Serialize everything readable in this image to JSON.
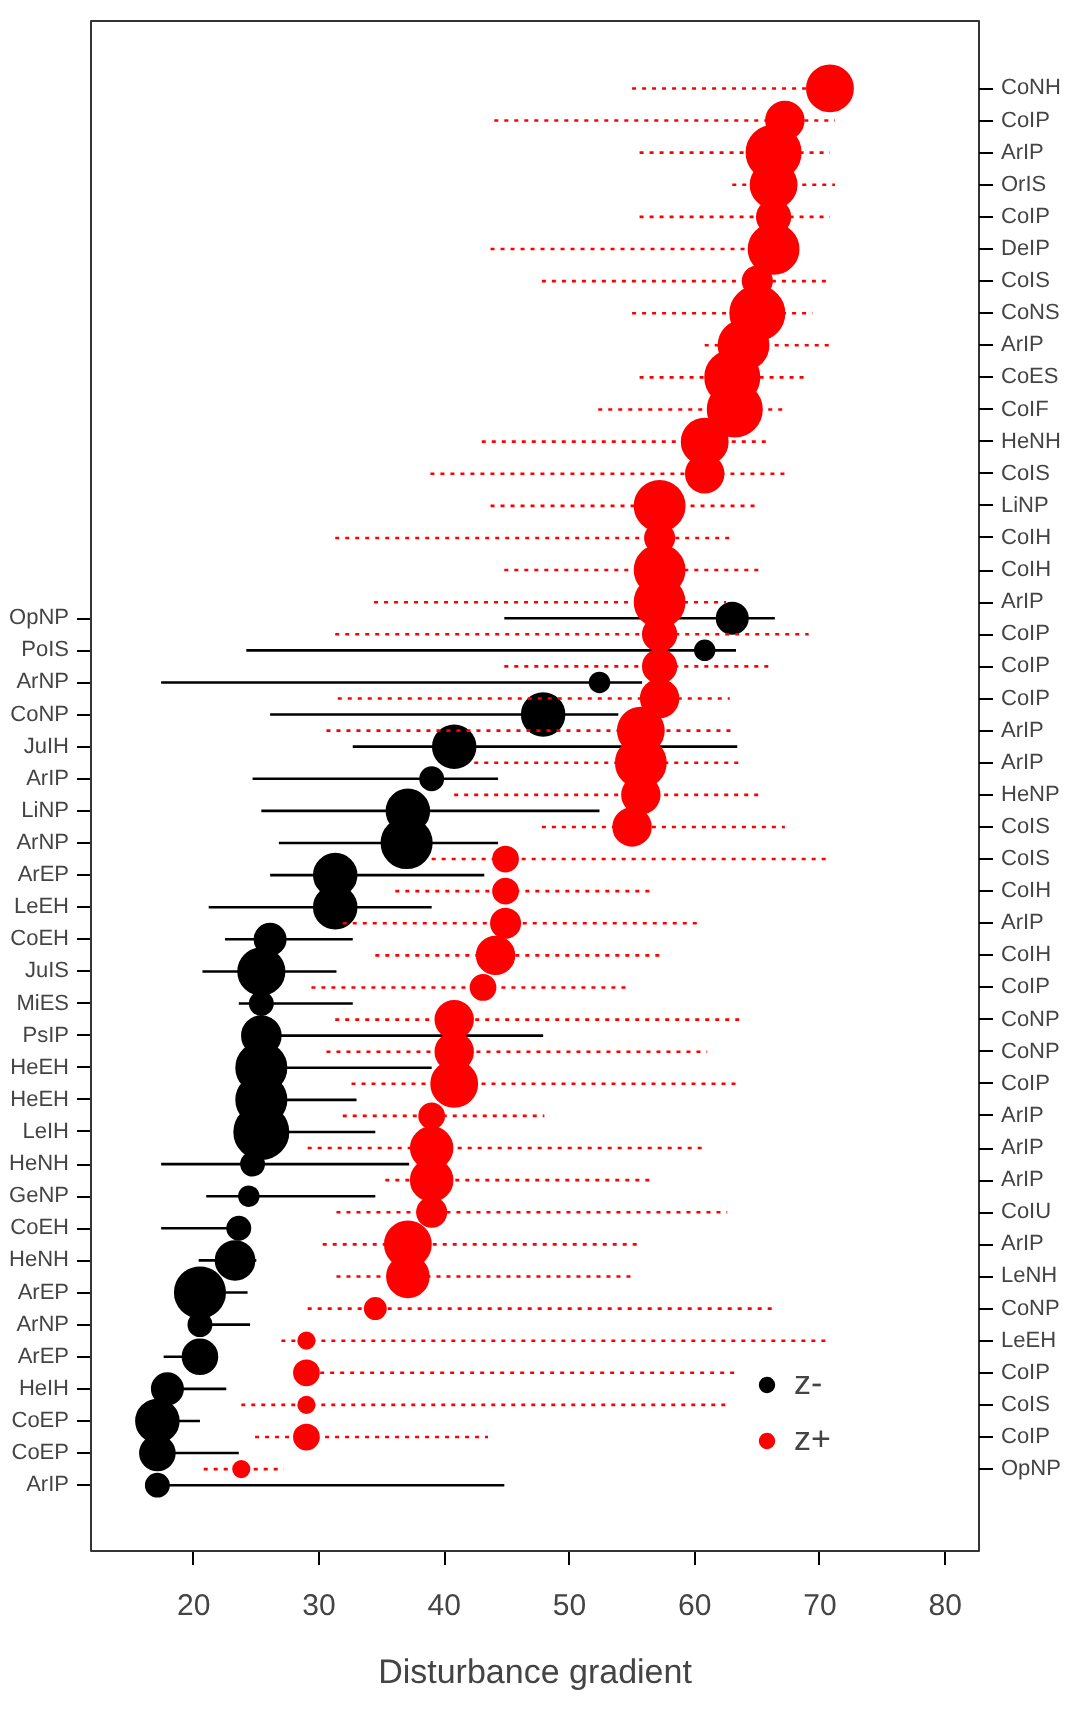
{
  "chart_data": [
    {
      "type": "scatter",
      "orientation": "horizontal",
      "xlabel": "Disturbance gradient",
      "xlim": [
        11.8,
        82.7
      ],
      "xticks": [
        20,
        30,
        40,
        50,
        60,
        70,
        80
      ],
      "grid": false,
      "legend": "bottom right",
      "marker": "circle",
      "categories": [
        "OpNP",
        "PoIS",
        "ArNP",
        "CoNP",
        "JuIH",
        "ArIP",
        "LiNP",
        "ArNP",
        "ArEP",
        "LeEH",
        "CoEH",
        "JuIS",
        "MiES",
        "PsIP",
        "HeEH",
        "HeEH",
        "LeIH",
        "HeNH",
        "GeNP",
        "CoEH",
        "HeNH",
        "ArEP",
        "ArNP",
        "ArEP",
        "HeIH",
        "CoEP",
        "CoEP",
        "ArIP"
      ],
      "series": [
        {
          "name": "z-",
          "color": "#000000",
          "line_style": "solid",
          "values": [
            63.0,
            60.8,
            52.4,
            47.9,
            40.8,
            39.0,
            37.1,
            37.0,
            31.3,
            31.3,
            26.1,
            25.4,
            25.4,
            25.4,
            25.4,
            25.4,
            25.4,
            24.7,
            24.4,
            23.6,
            23.3,
            20.5,
            20.5,
            20.5,
            17.9,
            17.1,
            17.1,
            17.1
          ],
          "sizes": [
            0.33,
            0.13,
            0.13,
            0.62,
            0.62,
            0.18,
            0.62,
            0.86,
            0.62,
            0.62,
            0.33,
            0.73,
            0.18,
            0.51,
            0.86,
            0.86,
            1.0,
            0.18,
            0.13,
            0.18,
            0.51,
            0.86,
            0.18,
            0.41,
            0.33,
            0.62,
            0.41,
            0.18
          ],
          "errors": [
            [
              44.8,
              66.4
            ],
            [
              24.2,
              63.3
            ],
            [
              17.4,
              55.8
            ],
            [
              26.1,
              53.9
            ],
            [
              32.7,
              63.4
            ],
            [
              24.7,
              44.3
            ],
            [
              25.4,
              52.4
            ],
            [
              26.8,
              44.3
            ],
            [
              26.1,
              43.2
            ],
            [
              21.2,
              39.0
            ],
            [
              22.5,
              32.7
            ],
            [
              20.7,
              31.4
            ],
            [
              23.6,
              32.7
            ],
            [
              25.4,
              47.9
            ],
            [
              25.4,
              39.0
            ],
            [
              25.4,
              33.0
            ],
            [
              25.4,
              34.5
            ],
            [
              17.4,
              37.2
            ],
            [
              21.0,
              34.5
            ],
            [
              17.4,
              24.0
            ],
            [
              20.4,
              25.0
            ],
            [
              20.5,
              24.3
            ],
            [
              20.0,
              24.5
            ],
            [
              17.6,
              20.5
            ],
            [
              17.0,
              22.6
            ],
            [
              17.1,
              20.5
            ],
            [
              17.1,
              23.6
            ],
            [
              17.0,
              44.8
            ]
          ]
        }
      ]
    },
    {
      "type": "scatter",
      "orientation": "horizontal",
      "xlim": [
        11.8,
        82.7
      ],
      "xticks": [
        20,
        30,
        40,
        50,
        60,
        70,
        80
      ],
      "grid": false,
      "legend": "bottom right",
      "marker": "circle",
      "tick_labels": "y",
      "categories": [
        "CoNH",
        "CoIP",
        "ArIP",
        "OrIS",
        "CoIP",
        "DeIP",
        "CoIS",
        "CoNS",
        "ArIP",
        "CoES",
        "CoIF",
        "HeNH",
        "CoIS",
        "LiNP",
        "CoIH",
        "CoIH",
        "ArIP",
        "CoIP",
        "CoIP",
        "CoIP",
        "ArIP",
        "ArIP",
        "HeNP",
        "CoIS",
        "CoIS",
        "CoIH",
        "ArIP",
        "CoIH",
        "CoIP",
        "CoNP",
        "CoNP",
        "CoIP",
        "ArIP",
        "ArIP",
        "ArIP",
        "CoIU",
        "ArIP",
        "LeNH",
        "CoNP",
        "LeEH",
        "CoIP",
        "CoIS",
        "CoIP",
        "OpNP"
      ],
      "series": [
        {
          "name": "z+",
          "color": "#ff0000",
          "line_style": "dotted",
          "axis": "y2",
          "values": [
            70.8,
            67.2,
            66.3,
            66.3,
            66.3,
            66.3,
            65.0,
            65.0,
            63.9,
            63.0,
            63.2,
            60.8,
            60.8,
            57.2,
            57.2,
            57.2,
            57.2,
            57.2,
            57.2,
            57.2,
            55.7,
            55.7,
            55.7,
            55.0,
            44.9,
            44.9,
            44.9,
            44.1,
            43.1,
            40.8,
            40.8,
            40.8,
            39.0,
            39.0,
            39.0,
            39.0,
            37.1,
            37.1,
            34.5,
            29.0,
            29.0,
            29.0,
            29.0,
            23.8
          ],
          "sizes": [
            0.72,
            0.48,
            1.0,
            0.72,
            0.38,
            0.85,
            0.29,
            1.0,
            0.85,
            1.0,
            1.0,
            0.72,
            0.48,
            0.85,
            0.29,
            0.85,
            0.85,
            0.38,
            0.38,
            0.48,
            0.72,
            0.85,
            0.48,
            0.48,
            0.21,
            0.21,
            0.29,
            0.48,
            0.21,
            0.48,
            0.48,
            0.72,
            0.21,
            0.59,
            0.59,
            0.29,
            0.72,
            0.59,
            0.15,
            0.09,
            0.21,
            0.09,
            0.21,
            0.09
          ],
          "errors": [
            [
              55.0,
              70.8
            ],
            [
              44.0,
              71.2
            ],
            [
              55.6,
              70.8
            ],
            [
              63.0,
              71.2
            ],
            [
              55.6,
              70.8
            ],
            [
              43.7,
              68.0
            ],
            [
              47.8,
              70.8
            ],
            [
              55.0,
              69.4
            ],
            [
              60.8,
              70.8
            ],
            [
              55.6,
              69.1
            ],
            [
              52.3,
              67.2
            ],
            [
              43.0,
              66.1
            ],
            [
              38.9,
              67.2
            ],
            [
              43.7,
              65.0
            ],
            [
              31.3,
              63.0
            ],
            [
              44.8,
              65.2
            ],
            [
              34.4,
              62.5
            ],
            [
              31.3,
              69.1
            ],
            [
              44.8,
              66.1
            ],
            [
              31.5,
              62.8
            ],
            [
              30.6,
              63.3
            ],
            [
              42.4,
              63.6
            ],
            [
              40.8,
              65.5
            ],
            [
              47.8,
              67.2
            ],
            [
              39.0,
              70.8
            ],
            [
              36.1,
              56.8
            ],
            [
              31.9,
              60.6
            ],
            [
              34.5,
              57.3
            ],
            [
              29.4,
              54.7
            ],
            [
              31.3,
              63.7
            ],
            [
              30.6,
              61.0
            ],
            [
              32.6,
              63.5
            ],
            [
              31.9,
              48.0
            ],
            [
              29.1,
              60.8
            ],
            [
              35.3,
              56.8
            ],
            [
              31.4,
              62.6
            ],
            [
              30.3,
              55.7
            ],
            [
              31.4,
              55.1
            ],
            [
              29.1,
              66.4
            ],
            [
              27.0,
              70.8
            ],
            [
              28.5,
              63.2
            ],
            [
              23.8,
              62.9
            ],
            [
              24.9,
              43.5
            ],
            [
              20.8,
              27.2
            ]
          ]
        }
      ]
    }
  ]
}
